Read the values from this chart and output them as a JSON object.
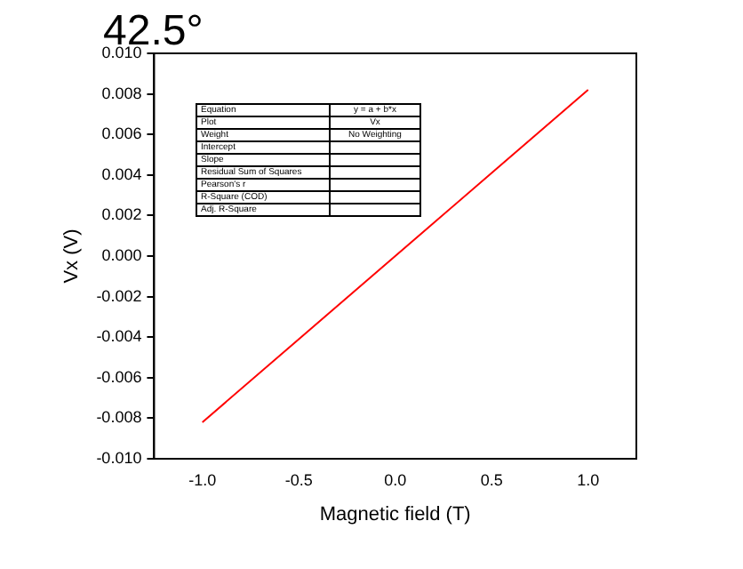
{
  "chart_data": {
    "type": "line",
    "title": "42.5°",
    "xlabel": "Magnetic field (T)",
    "ylabel": "Vx (V)",
    "x": [
      -1,
      -0.5,
      0,
      0.5,
      1
    ],
    "series": [
      {
        "color": "#ff0000",
        "values": [
          -0.0082,
          -0.0041,
          0.0,
          0.0041,
          0.0082
        ]
      }
    ],
    "xlim": [
      -1.25,
      1.25
    ],
    "xticks": [
      {
        "value": -1,
        "label": "-1.0"
      },
      {
        "value": -0.5,
        "label": "-0.5"
      },
      {
        "value": 0,
        "label": "0.0"
      },
      {
        "value": 0.5,
        "label": "0.5"
      },
      {
        "value": 1,
        "label": "1.0"
      }
    ],
    "ylim": [
      -0.01,
      0.01
    ],
    "yticks": [
      {
        "value": -0.01,
        "label": "-0.010"
      },
      {
        "value": -0.008,
        "label": "-0.008"
      },
      {
        "value": -0.006,
        "label": "-0.006"
      },
      {
        "value": -0.004,
        "label": "-0.004"
      },
      {
        "value": -0.002,
        "label": "-0.002"
      },
      {
        "value": 0,
        "label": "0.000"
      },
      {
        "value": 0.002,
        "label": "0.002"
      },
      {
        "value": 0.004,
        "label": "0.004"
      },
      {
        "value": 0.006,
        "label": "0.006"
      },
      {
        "value": 0.008,
        "label": "0.008"
      },
      {
        "value": 0.01,
        "label": "0.010"
      }
    ],
    "grid": false,
    "legend": false,
    "marker": "none",
    "line_style": "solid",
    "annotations": [
      "Equation",
      "Plot",
      "Weight",
      "Intercept",
      "Slope",
      "Residual Sum of Squares",
      "Pearson's r",
      "R-Square (COD)",
      "Adj. R-Square",
      "y = a + b*x",
      "Vx",
      "No Weighting"
    ]
  }
}
